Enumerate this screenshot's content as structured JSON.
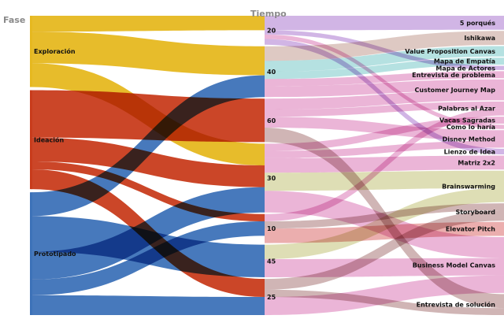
{
  "headers": {
    "phase": "Fase",
    "time": "Tiempo"
  },
  "colors": {
    "Exploración": "#e6b820",
    "Ideación": "#c83c1c",
    "Prototipado": "#3d72b8"
  },
  "phases": [
    "Exploración",
    "Ideación",
    "Prototipado"
  ],
  "times": [
    "20",
    "40",
    "60",
    "30",
    "10",
    "45",
    "25"
  ],
  "methods": [
    "5 porqués",
    "Ishikawa",
    "Value Proposition Canvas",
    "Mapa de Empatía",
    "Mapa de Actores",
    "Entrevista de problema",
    "Customer Journey Map",
    "Palabras al Azar",
    "Vacas Sagradas",
    "Como lo haría",
    "Disney Method",
    "Lienzo de Idea",
    "Matriz 2x2",
    "Brainswarming",
    "Storyboard",
    "Elevator Pitch",
    "Business Model Canvas",
    "Entrevista de solución"
  ],
  "method_colors": [
    "#c9a8e0",
    "#d8c0b8",
    "#a8dcdc",
    "#a8dcdc",
    "#c9a8e0",
    "#e8a8d0",
    "#e8a8d0",
    "#e8a8d0",
    "#e8a8d0",
    "#e8a8d0",
    "#e8a8d0",
    "#c9a8e0",
    "#e8a8d0",
    "#d8d8a8",
    "#c8a8a8",
    "#e8a0a0",
    "#e8a8d0",
    "#c8a8a8"
  ],
  "flows_phase_time": [
    {
      "phase": "Exploración",
      "time": "20",
      "value": 20
    },
    {
      "phase": "Exploración",
      "time": "40",
      "value": 40
    },
    {
      "phase": "Exploración",
      "time": "30",
      "value": 30
    },
    {
      "phase": "Ideación",
      "time": "60",
      "value": 60
    },
    {
      "phase": "Ideación",
      "time": "30",
      "value": 30
    },
    {
      "phase": "Ideación",
      "time": "10",
      "value": 10
    },
    {
      "phase": "Ideación",
      "time": "25",
      "value": 25
    },
    {
      "phase": "Prototipado",
      "time": "40",
      "value": 30
    },
    {
      "phase": "Prototipado",
      "time": "45",
      "value": 45
    },
    {
      "phase": "Prototipado",
      "time": "30",
      "value": 35
    },
    {
      "phase": "Prototipado",
      "time": "10",
      "value": 20
    },
    {
      "phase": "Prototipado",
      "time": "25",
      "value": 25
    }
  ],
  "flows_time_method": [
    {
      "time": "20",
      "method": "5 porqués",
      "value": 20
    },
    {
      "time": "20",
      "method": "Mapa de Actores",
      "value": 6
    },
    {
      "time": "20",
      "method": "Como lo haría",
      "value": 6
    },
    {
      "time": "20",
      "method": "Lienzo de Idea",
      "value": 8
    },
    {
      "time": "40",
      "method": "Ishikawa",
      "value": 20
    },
    {
      "time": "40",
      "method": "Value Proposition Canvas",
      "value": 15
    },
    {
      "time": "40",
      "method": "Mapa de Empatía",
      "value": 10
    },
    {
      "time": "40",
      "method": "Entrevista de problema",
      "value": 10
    },
    {
      "time": "40",
      "method": "Customer Journey Map",
      "value": 15
    },
    {
      "time": "60",
      "method": "Customer Journey Map",
      "value": 15
    },
    {
      "time": "60",
      "method": "Palabras al Azar",
      "value": 10
    },
    {
      "time": "60",
      "method": "Disney Method",
      "value": 15
    },
    {
      "time": "60",
      "method": "Entrevista de solución",
      "value": 20
    },
    {
      "time": "30",
      "method": "Vacas Sagradas",
      "value": 10
    },
    {
      "time": "30",
      "method": "Disney Method",
      "value": 10
    },
    {
      "time": "30",
      "method": "Matriz 2x2",
      "value": 20
    },
    {
      "time": "30",
      "method": "Brainswarming",
      "value": 25
    },
    {
      "time": "30",
      "method": "Business Model Canvas",
      "value": 30
    },
    {
      "time": "10",
      "method": "Palabras al Azar",
      "value": 10
    },
    {
      "time": "10",
      "method": "Storyboard",
      "value": 10
    },
    {
      "time": "10",
      "method": "Elevator Pitch",
      "value": 20
    },
    {
      "time": "45",
      "method": "Brainswarming",
      "value": 20
    },
    {
      "time": "45",
      "method": "Business Model Canvas",
      "value": 25
    },
    {
      "time": "25",
      "method": "Storyboard",
      "value": 15
    },
    {
      "time": "25",
      "method": "Entrevista de solución",
      "value": 10
    },
    {
      "time": "25",
      "method": "Business Model Canvas",
      "value": 25
    }
  ]
}
